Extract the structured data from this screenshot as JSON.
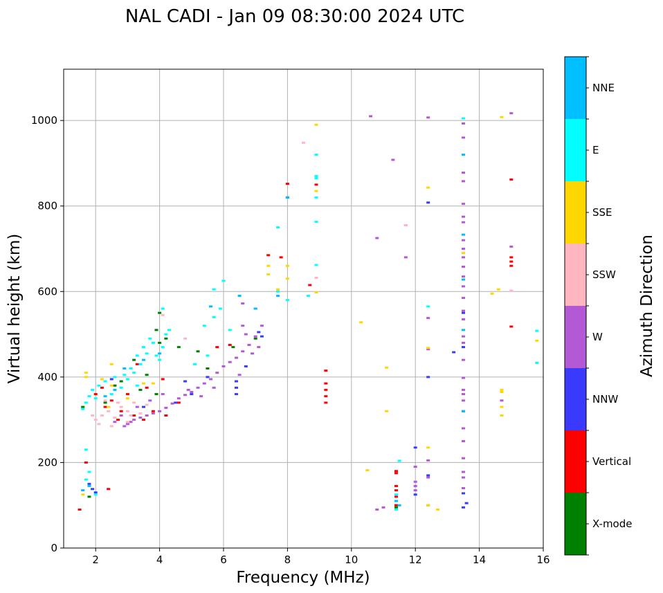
{
  "chart_data": {
    "type": "scatter",
    "title": "NAL CADI - Jan 09 08:30:00 2024 UTC",
    "xlabel": "Frequency (MHz)",
    "ylabel": "Virtual height (km)",
    "xlim": [
      1,
      16
    ],
    "ylim": [
      0,
      1120
    ],
    "xticks": [
      2,
      4,
      6,
      8,
      10,
      12,
      14,
      16
    ],
    "yticks": [
      0,
      200,
      400,
      600,
      800,
      1000
    ],
    "grid": true,
    "colorbar": {
      "label": "Azimuth Direction",
      "categories": [
        "X-mode",
        "Vertical",
        "NNW",
        "W",
        "SSW",
        "SSE",
        "E",
        "NNE"
      ],
      "colors": [
        "#008000",
        "#ff0000",
        "#3a3aff",
        "#b459d6",
        "#ffb6c1",
        "#ffd700",
        "#00ffff",
        "#00bfff"
      ]
    },
    "series": [
      {
        "name": "X-mode",
        "points": [
          [
            2.3,
            340
          ],
          [
            3.4,
            370
          ],
          [
            3.9,
            360
          ],
          [
            3.9,
            510
          ],
          [
            4.0,
            550
          ],
          [
            4.0,
            480
          ],
          [
            3.6,
            405
          ],
          [
            2.8,
            390
          ],
          [
            1.6,
            330
          ],
          [
            5.2,
            460
          ],
          [
            5.5,
            420
          ],
          [
            6.3,
            470
          ],
          [
            7.0,
            490
          ],
          [
            1.8,
            120
          ],
          [
            11.4,
            95
          ],
          [
            11.4,
            100
          ],
          [
            2.6,
            380
          ],
          [
            3.2,
            440
          ],
          [
            4.2,
            490
          ],
          [
            4.6,
            470
          ]
        ]
      },
      {
        "name": "Vertical",
        "points": [
          [
            2.3,
            330
          ],
          [
            2.5,
            345
          ],
          [
            2.8,
            320
          ],
          [
            3.2,
            310
          ],
          [
            3.5,
            300
          ],
          [
            3.8,
            320
          ],
          [
            4.2,
            310
          ],
          [
            4.6,
            340
          ],
          [
            2.2,
            375
          ],
          [
            3.3,
            430
          ],
          [
            3.6,
            375
          ],
          [
            4.1,
            395
          ],
          [
            9.2,
            415
          ],
          [
            9.2,
            385
          ],
          [
            9.2,
            370
          ],
          [
            9.2,
            355
          ],
          [
            9.2,
            340
          ],
          [
            11.4,
            180
          ],
          [
            11.4,
            175
          ],
          [
            11.4,
            145
          ],
          [
            11.4,
            135
          ],
          [
            11.4,
            120
          ],
          [
            11.4,
            100
          ],
          [
            15.0,
            862
          ],
          [
            15.0,
            680
          ],
          [
            15.0,
            670
          ],
          [
            15.0,
            660
          ],
          [
            15.0,
            518
          ],
          [
            8.9,
            850
          ],
          [
            8.0,
            852
          ],
          [
            7.8,
            680
          ],
          [
            1.7,
            200
          ],
          [
            1.5,
            90
          ],
          [
            2.4,
            138
          ],
          [
            7.4,
            685
          ],
          [
            2.0,
            360
          ],
          [
            2.7,
            300
          ],
          [
            3.0,
            360
          ],
          [
            8.7,
            615
          ],
          [
            5.8,
            470
          ],
          [
            6.2,
            475
          ]
        ]
      },
      {
        "name": "NNW",
        "points": [
          [
            1.9,
            138
          ],
          [
            2.0,
            130
          ],
          [
            1.8,
            150
          ],
          [
            6.4,
            390
          ],
          [
            6.4,
            375
          ],
          [
            6.4,
            360
          ],
          [
            6.7,
            425
          ],
          [
            7.1,
            505
          ],
          [
            7.2,
            495
          ],
          [
            12.0,
            235
          ],
          [
            12.0,
            125
          ],
          [
            12.4,
            400
          ],
          [
            12.4,
            170
          ],
          [
            12.4,
            808
          ],
          [
            13.2,
            458
          ],
          [
            13.5,
            550
          ],
          [
            13.5,
            470
          ],
          [
            13.5,
            320
          ],
          [
            13.5,
            128
          ],
          [
            13.5,
            95
          ],
          [
            13.6,
            105
          ],
          [
            4.5,
            340
          ],
          [
            5.0,
            360
          ],
          [
            5.5,
            400
          ],
          [
            4.8,
            390
          ],
          [
            8.0,
            820
          ],
          [
            3.5,
            330
          ],
          [
            2.5,
            395
          ]
        ]
      },
      {
        "name": "W",
        "points": [
          [
            2.9,
            285
          ],
          [
            3.0,
            290
          ],
          [
            3.1,
            295
          ],
          [
            3.2,
            300
          ],
          [
            3.4,
            305
          ],
          [
            3.6,
            310
          ],
          [
            3.8,
            315
          ],
          [
            4.0,
            320
          ],
          [
            4.2,
            328
          ],
          [
            4.4,
            338
          ],
          [
            4.6,
            350
          ],
          [
            4.8,
            358
          ],
          [
            5.0,
            365
          ],
          [
            5.2,
            375
          ],
          [
            5.4,
            385
          ],
          [
            5.6,
            395
          ],
          [
            5.8,
            410
          ],
          [
            6.0,
            425
          ],
          [
            6.2,
            435
          ],
          [
            6.4,
            445
          ],
          [
            6.6,
            460
          ],
          [
            6.8,
            475
          ],
          [
            7.0,
            495
          ],
          [
            7.2,
            520
          ],
          [
            2.6,
            295
          ],
          [
            2.8,
            310
          ],
          [
            3.3,
            330
          ],
          [
            3.7,
            345
          ],
          [
            4.1,
            360
          ],
          [
            4.9,
            370
          ],
          [
            5.3,
            355
          ],
          [
            5.7,
            375
          ],
          [
            6.5,
            405
          ],
          [
            6.9,
            455
          ],
          [
            7.1,
            470
          ],
          [
            6.6,
            520
          ],
          [
            6.7,
            500
          ],
          [
            7.0,
            560
          ],
          [
            6.6,
            572
          ],
          [
            10.6,
            1010
          ],
          [
            11.3,
            908
          ],
          [
            11.7,
            680
          ],
          [
            10.8,
            725
          ],
          [
            11.7,
            755
          ],
          [
            12.4,
            1007
          ],
          [
            12.4,
            538
          ],
          [
            12.4,
            465
          ],
          [
            12.4,
            205
          ],
          [
            12.4,
            165
          ],
          [
            12.4,
            100
          ],
          [
            12.0,
            190
          ],
          [
            12.0,
            155
          ],
          [
            12.0,
            145
          ],
          [
            12.0,
            135
          ],
          [
            11.0,
            95
          ],
          [
            13.5,
            993
          ],
          [
            13.5,
            960
          ],
          [
            13.5,
            878
          ],
          [
            13.5,
            858
          ],
          [
            13.5,
            805
          ],
          [
            13.5,
            775
          ],
          [
            13.5,
            762
          ],
          [
            13.5,
            720
          ],
          [
            13.5,
            700
          ],
          [
            13.5,
            680
          ],
          [
            13.5,
            658
          ],
          [
            13.5,
            635
          ],
          [
            13.5,
            612
          ],
          [
            13.5,
            585
          ],
          [
            13.5,
            555
          ],
          [
            13.5,
            535
          ],
          [
            13.5,
            495
          ],
          [
            13.5,
            480
          ],
          [
            13.5,
            440
          ],
          [
            13.5,
            398
          ],
          [
            13.5,
            370
          ],
          [
            13.5,
            360
          ],
          [
            13.5,
            345
          ],
          [
            13.5,
            280
          ],
          [
            13.5,
            250
          ],
          [
            13.5,
            210
          ],
          [
            13.5,
            178
          ],
          [
            13.5,
            165
          ],
          [
            13.5,
            140
          ],
          [
            14.7,
            345
          ],
          [
            15.0,
            1017
          ],
          [
            15.0,
            705
          ],
          [
            10.8,
            90
          ]
        ]
      },
      {
        "name": "SSW",
        "points": [
          [
            2.0,
            300
          ],
          [
            2.2,
            310
          ],
          [
            2.4,
            320
          ],
          [
            2.6,
            305
          ],
          [
            2.8,
            330
          ],
          [
            3.0,
            320
          ],
          [
            3.2,
            340
          ],
          [
            2.1,
            290
          ],
          [
            2.5,
            285
          ],
          [
            3.4,
            315
          ],
          [
            3.6,
            335
          ],
          [
            2.3,
            345
          ],
          [
            1.9,
            310
          ],
          [
            2.7,
            340
          ],
          [
            3.1,
            310
          ],
          [
            4.1,
            545
          ],
          [
            4.8,
            490
          ],
          [
            8.5,
            948
          ],
          [
            8.9,
            632
          ],
          [
            11.7,
            755
          ],
          [
            15.0,
            602
          ],
          [
            3.0,
            295
          ]
        ]
      },
      {
        "name": "SSE",
        "points": [
          [
            1.7,
            400
          ],
          [
            1.7,
            410
          ],
          [
            2.5,
            430
          ],
          [
            2.2,
            395
          ],
          [
            2.5,
            380
          ],
          [
            3.0,
            350
          ],
          [
            3.8,
            385
          ],
          [
            7.4,
            660
          ],
          [
            7.4,
            640
          ],
          [
            7.7,
            605
          ],
          [
            8.0,
            660
          ],
          [
            8.0,
            630
          ],
          [
            8.9,
            990
          ],
          [
            8.9,
            835
          ],
          [
            8.9,
            598
          ],
          [
            10.3,
            528
          ],
          [
            11.1,
            422
          ],
          [
            11.1,
            320
          ],
          [
            12.4,
            843
          ],
          [
            12.4,
            468
          ],
          [
            12.4,
            235
          ],
          [
            12.4,
            100
          ],
          [
            12.7,
            90
          ],
          [
            13.5,
            690
          ],
          [
            14.4,
            595
          ],
          [
            14.6,
            605
          ],
          [
            14.7,
            1008
          ],
          [
            14.7,
            370
          ],
          [
            14.7,
            365
          ],
          [
            14.7,
            330
          ],
          [
            14.7,
            310
          ],
          [
            15.8,
            485
          ],
          [
            10.5,
            182
          ],
          [
            1.6,
            125
          ],
          [
            2.4,
            330
          ],
          [
            3.5,
            385
          ]
        ]
      },
      {
        "name": "E",
        "points": [
          [
            1.6,
            325
          ],
          [
            1.7,
            340
          ],
          [
            1.8,
            355
          ],
          [
            1.9,
            370
          ],
          [
            2.0,
            350
          ],
          [
            2.1,
            380
          ],
          [
            2.3,
            390
          ],
          [
            2.5,
            360
          ],
          [
            2.6,
            400
          ],
          [
            2.8,
            375
          ],
          [
            3.0,
            395
          ],
          [
            3.1,
            420
          ],
          [
            3.2,
            410
          ],
          [
            3.3,
            450
          ],
          [
            3.4,
            430
          ],
          [
            3.5,
            470
          ],
          [
            3.6,
            455
          ],
          [
            3.7,
            490
          ],
          [
            3.8,
            480
          ],
          [
            3.9,
            450
          ],
          [
            4.0,
            440
          ],
          [
            4.1,
            470
          ],
          [
            4.2,
            500
          ],
          [
            4.3,
            510
          ],
          [
            4.1,
            560
          ],
          [
            5.1,
            430
          ],
          [
            5.4,
            520
          ],
          [
            5.7,
            540
          ],
          [
            5.9,
            560
          ],
          [
            5.7,
            605
          ],
          [
            5.5,
            450
          ],
          [
            6.0,
            625
          ],
          [
            6.2,
            510
          ],
          [
            7.7,
            750
          ],
          [
            7.7,
            600
          ],
          [
            8.0,
            580
          ],
          [
            8.65,
            590
          ],
          [
            8.9,
            920
          ],
          [
            8.9,
            870
          ],
          [
            8.9,
            865
          ],
          [
            8.9,
            820
          ],
          [
            8.9,
            763
          ],
          [
            8.9,
            662
          ],
          [
            11.4,
            125
          ],
          [
            11.4,
            90
          ],
          [
            11.5,
            204
          ],
          [
            12.4,
            565
          ],
          [
            13.5,
            1005
          ],
          [
            15.8,
            508
          ],
          [
            15.8,
            433
          ],
          [
            1.8,
            178
          ],
          [
            1.7,
            230
          ],
          [
            2.0,
            125
          ],
          [
            1.7,
            160
          ],
          [
            3.3,
            380
          ],
          [
            2.9,
            405
          ]
        ]
      },
      {
        "name": "NNE",
        "points": [
          [
            1.8,
            145
          ],
          [
            1.6,
            135
          ],
          [
            2.3,
            355
          ],
          [
            2.6,
            370
          ],
          [
            2.9,
            420
          ],
          [
            3.5,
            440
          ],
          [
            4.0,
            455
          ],
          [
            5.6,
            565
          ],
          [
            6.5,
            590
          ],
          [
            7.0,
            560
          ],
          [
            7.7,
            590
          ],
          [
            8.0,
            820
          ],
          [
            13.5,
            920
          ],
          [
            13.5,
            733
          ],
          [
            13.5,
            628
          ],
          [
            13.5,
            510
          ],
          [
            13.5,
            320
          ],
          [
            11.4,
            110
          ],
          [
            11.5,
            100
          ]
        ]
      }
    ]
  }
}
